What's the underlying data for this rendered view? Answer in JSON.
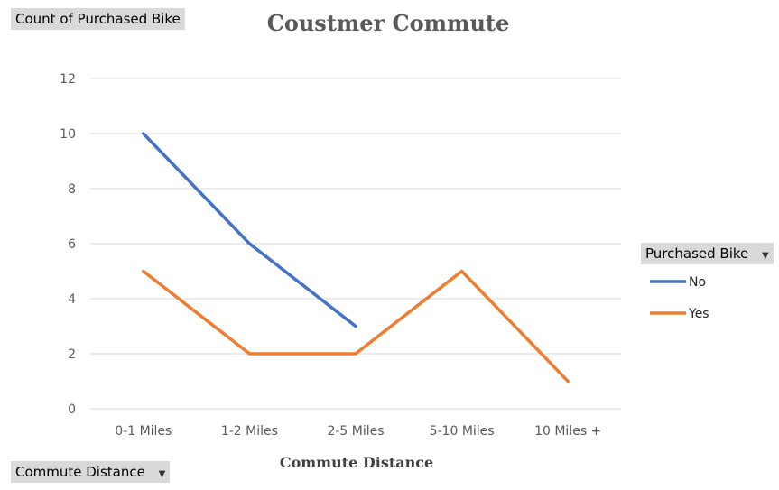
{
  "pivot": {
    "value_field": "Count of Purchased Bike",
    "legend_field": "Purchased Bike",
    "axis_field": "Commute Distance",
    "dropdown_glyph": "▼"
  },
  "colors": {
    "No": "#4472c4",
    "Yes": "#ed7d31",
    "grid": "#d9d9d9"
  },
  "chart_data": {
    "type": "line",
    "title": "Coustmer Commute",
    "xlabel": "Commute Distance",
    "ylabel": "",
    "categories": [
      "0-1 Miles",
      "1-2 Miles",
      "2-5 Miles",
      "5-10 Miles",
      "10 Miles +"
    ],
    "yticks": [
      0,
      2,
      4,
      6,
      8,
      10,
      12
    ],
    "ylim": [
      0,
      12
    ],
    "grid": true,
    "legend": "right",
    "series": [
      {
        "name": "No",
        "values": [
          10,
          6,
          3,
          null,
          null
        ]
      },
      {
        "name": "Yes",
        "values": [
          5,
          2,
          2,
          5,
          1
        ]
      }
    ]
  }
}
